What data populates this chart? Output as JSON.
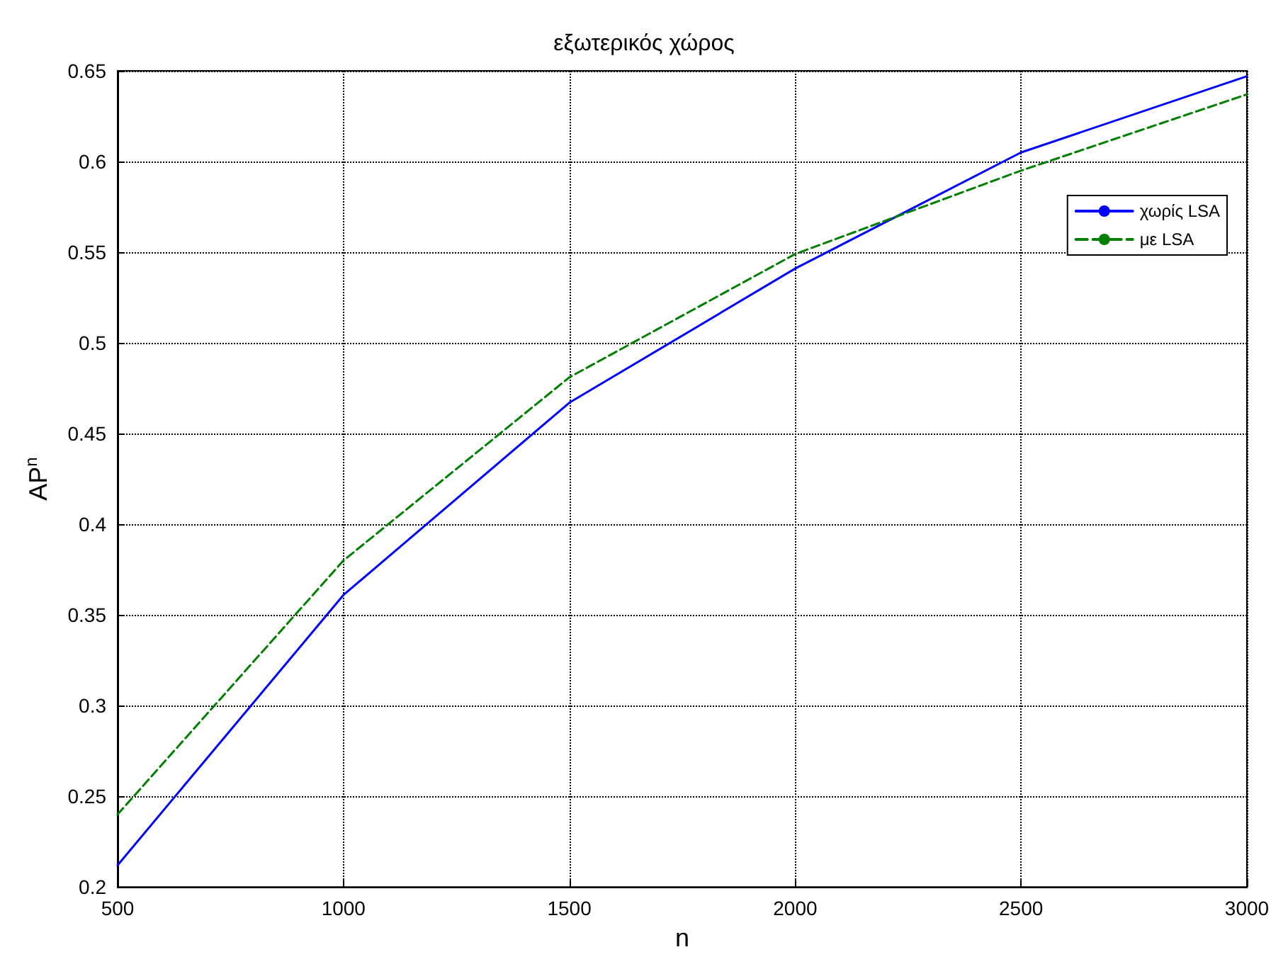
{
  "chart_data": {
    "type": "line",
    "title": "εξωτερικός χώρος",
    "xlabel": "n",
    "ylabel": "AP$^{n}$",
    "x": [
      500,
      1000,
      1500,
      2000,
      2500,
      3000
    ],
    "series": [
      {
        "name": "χωρίς LSA",
        "color": "#0000ff",
        "line_style": "solid",
        "values": [
          0.212,
          0.361,
          0.467,
          0.541,
          0.605,
          0.647
        ]
      },
      {
        "name": "με LSA",
        "color": "#007f00",
        "line_style": "dashed",
        "values": [
          0.24,
          0.38,
          0.481,
          0.549,
          0.595,
          0.637
        ]
      }
    ],
    "xlim": [
      500,
      3000
    ],
    "xticks": [
      500,
      1000,
      1500,
      2000,
      2500,
      3000
    ],
    "ylim": [
      0.2,
      0.65
    ],
    "yticks": [
      0.2,
      0.25,
      0.3,
      0.35,
      0.4,
      0.45,
      0.5,
      0.55,
      0.6,
      0.65
    ],
    "grid": true,
    "legend": "top right",
    "marker": "none"
  }
}
